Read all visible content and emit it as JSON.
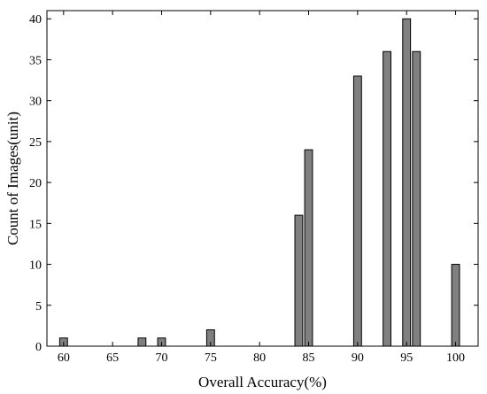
{
  "chart_data": {
    "type": "bar",
    "xlabel": "Overall Accuracy(%)",
    "ylabel": "Count of Images(unit)",
    "xlim": [
      58.3,
      102.3
    ],
    "ylim": [
      0,
      41
    ],
    "xticks": [
      60,
      65,
      70,
      75,
      80,
      85,
      90,
      95,
      100
    ],
    "yticks": [
      0,
      5,
      10,
      15,
      20,
      25,
      30,
      35,
      40
    ],
    "bar_width": 0.8,
    "bar_color": "#808080",
    "edge_color": "#000000",
    "grid": false,
    "bars": [
      {
        "x": 60,
        "value": 1
      },
      {
        "x": 68,
        "value": 1
      },
      {
        "x": 70,
        "value": 1
      },
      {
        "x": 75,
        "value": 2
      },
      {
        "x": 84,
        "value": 16
      },
      {
        "x": 85,
        "value": 24
      },
      {
        "x": 90,
        "value": 33
      },
      {
        "x": 93,
        "value": 36
      },
      {
        "x": 95,
        "value": 40
      },
      {
        "x": 96,
        "value": 36
      },
      {
        "x": 100,
        "value": 10
      }
    ]
  }
}
